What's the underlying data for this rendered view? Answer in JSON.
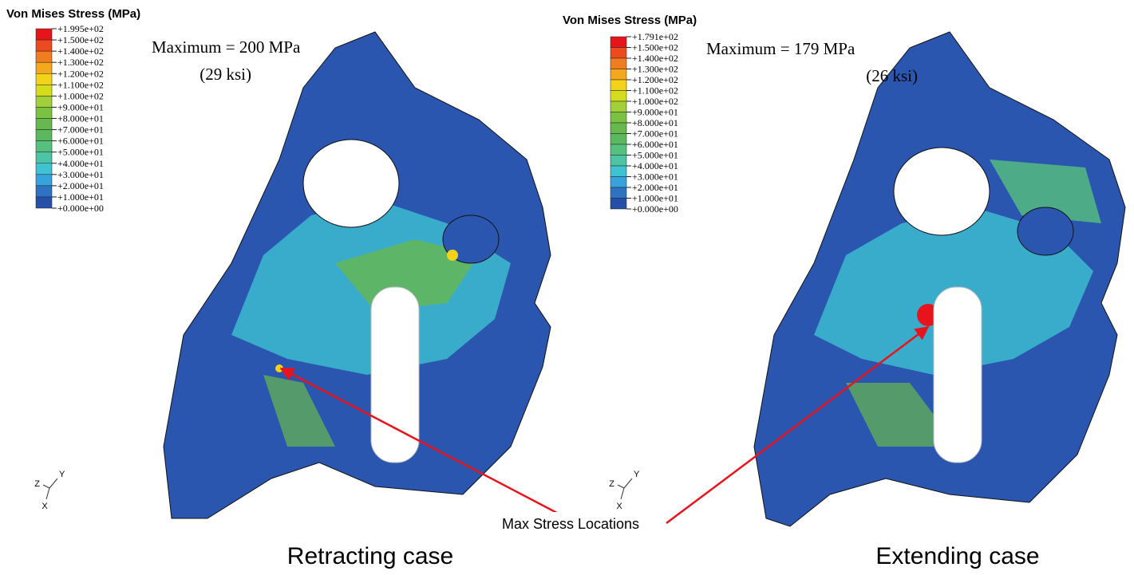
{
  "annotation": "Max Stress Locations",
  "panels": [
    {
      "legend": {
        "title": "Von Mises Stress (MPa)",
        "labels": [
          "+1.995e+02",
          "+1.500e+02",
          "+1.400e+02",
          "+1.300e+02",
          "+1.200e+02",
          "+1.100e+02",
          "+1.000e+02",
          "+9.000e+01",
          "+8.000e+01",
          "+7.000e+01",
          "+6.000e+01",
          "+5.000e+01",
          "+4.000e+01",
          "+3.000e+01",
          "+2.000e+01",
          "+1.000e+01",
          "+0.000e+00"
        ],
        "colors": [
          "#e8141c",
          "#ed4a1f",
          "#f07d1f",
          "#f4a81d",
          "#f3d21a",
          "#d5dc1b",
          "#a3cf3a",
          "#7cc242",
          "#66b84f",
          "#5cb85f",
          "#56c07e",
          "#4dc4a6",
          "#3fc2d2",
          "#37a3dc",
          "#2d73c2",
          "#2650a8"
        ]
      },
      "maximum": "Maximum = 200 MPa",
      "maximum_ksi": "(29 ksi)",
      "triad": [
        "Z",
        "Y",
        "X"
      ],
      "caption": "Retracting case"
    },
    {
      "legend": {
        "title": "Von Mises Stress (MPa)",
        "labels": [
          "+1.791e+02",
          "+1.500e+02",
          "+1.400e+02",
          "+1.300e+02",
          "+1.200e+02",
          "+1.100e+02",
          "+1.000e+02",
          "+9.000e+01",
          "+8.000e+01",
          "+7.000e+01",
          "+6.000e+01",
          "+5.000e+01",
          "+4.000e+01",
          "+3.000e+01",
          "+2.000e+01",
          "+1.000e+01",
          "+0.000e+00"
        ],
        "colors": [
          "#e8141c",
          "#ed4a1f",
          "#f07d1f",
          "#f4a81d",
          "#f3d21a",
          "#d5dc1b",
          "#a3cf3a",
          "#7cc242",
          "#66b84f",
          "#5cb85f",
          "#56c07e",
          "#4dc4a6",
          "#3fc2d2",
          "#37a3dc",
          "#2d73c2",
          "#2650a8"
        ]
      },
      "maximum": "Maximum = 179 MPa",
      "maximum_ksi": "(26 ksi)",
      "triad": [
        "Z",
        "Y",
        "X"
      ],
      "caption": "Extending case"
    }
  ]
}
